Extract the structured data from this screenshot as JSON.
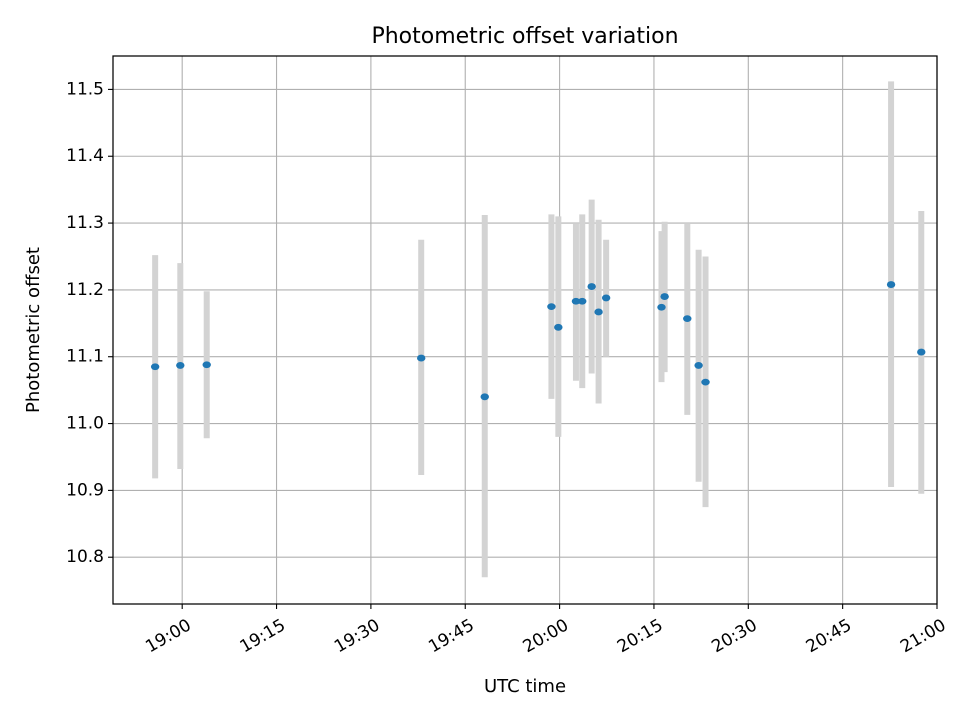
{
  "chart_data": {
    "type": "scatter",
    "title": "Photometric offset variation",
    "xlabel": "UTC time",
    "ylabel": "Photometric offset",
    "x_ticks": [
      "19:00",
      "19:15",
      "19:30",
      "19:45",
      "20:00",
      "20:15",
      "20:30",
      "20:45",
      "21:00"
    ],
    "y_ticks": [
      "10.8",
      "10.9",
      "11.0",
      "11.1",
      "11.2",
      "11.3",
      "11.4",
      "11.5"
    ],
    "x_range": [
      "18:49",
      "21:00"
    ],
    "y_range": [
      10.73,
      11.55
    ],
    "grid": true,
    "colors": {
      "point": "#1f77b4",
      "errorbar": "#d3d3d3",
      "grid": "#b0b0b0"
    },
    "points": [
      {
        "x": "18:55.7",
        "y": 11.085,
        "ylow": 10.918,
        "yhigh": 11.252
      },
      {
        "x": "18:59.7",
        "y": 11.087,
        "ylow": 10.932,
        "yhigh": 11.24
      },
      {
        "x": "19:03.9",
        "y": 11.088,
        "ylow": 10.978,
        "yhigh": 11.198
      },
      {
        "x": "19:38.0",
        "y": 11.098,
        "ylow": 10.923,
        "yhigh": 11.275
      },
      {
        "x": "19:48.1",
        "y": 11.04,
        "ylow": 10.77,
        "yhigh": 11.312
      },
      {
        "x": "19:58.7",
        "y": 11.175,
        "ylow": 11.037,
        "yhigh": 11.313
      },
      {
        "x": "19:59.8",
        "y": 11.144,
        "ylow": 10.98,
        "yhigh": 11.31
      },
      {
        "x": "20:02.6",
        "y": 11.183,
        "ylow": 11.064,
        "yhigh": 11.3
      },
      {
        "x": "20:03.6",
        "y": 11.183,
        "ylow": 11.053,
        "yhigh": 11.313
      },
      {
        "x": "20:05.1",
        "y": 11.205,
        "ylow": 11.075,
        "yhigh": 11.335
      },
      {
        "x": "20:06.2",
        "y": 11.167,
        "ylow": 11.03,
        "yhigh": 11.305
      },
      {
        "x": "20:07.4",
        "y": 11.188,
        "ylow": 11.1,
        "yhigh": 11.275
      },
      {
        "x": "20:16.2",
        "y": 11.174,
        "ylow": 11.062,
        "yhigh": 11.288
      },
      {
        "x": "20:16.7",
        "y": 11.19,
        "ylow": 11.077,
        "yhigh": 11.302
      },
      {
        "x": "20:20.3",
        "y": 11.157,
        "ylow": 11.013,
        "yhigh": 11.3
      },
      {
        "x": "20:22.1",
        "y": 11.087,
        "ylow": 10.913,
        "yhigh": 11.26
      },
      {
        "x": "20:23.2",
        "y": 11.062,
        "ylow": 10.875,
        "yhigh": 11.25
      },
      {
        "x": "20:52.7",
        "y": 11.208,
        "ylow": 10.905,
        "yhigh": 11.512
      },
      {
        "x": "20:57.5",
        "y": 11.107,
        "ylow": 10.895,
        "yhigh": 11.318
      }
    ]
  }
}
